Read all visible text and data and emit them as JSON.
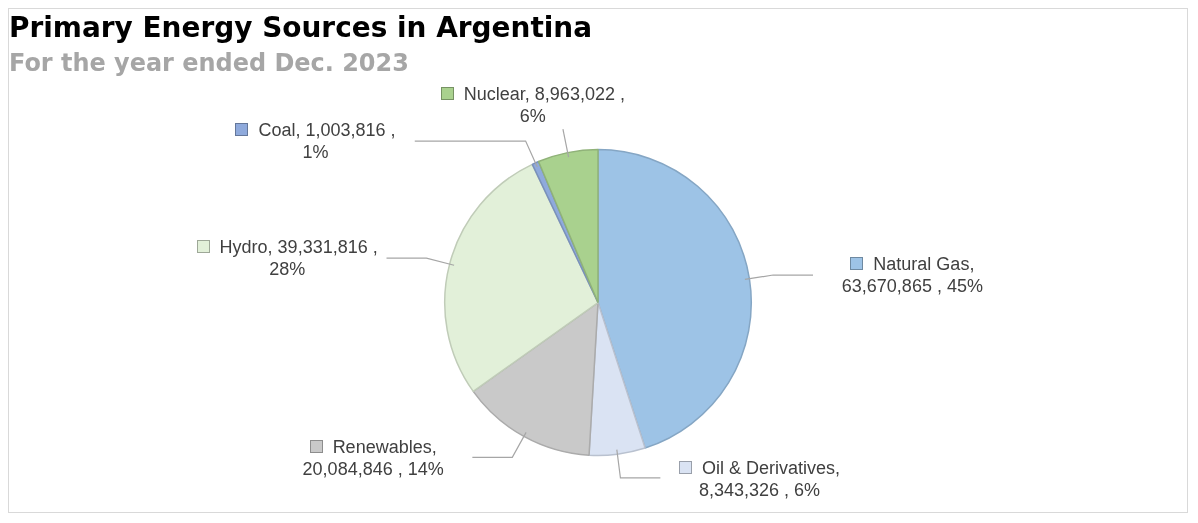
{
  "chart_data": {
    "type": "pie",
    "title": "Primary Energy Sources in Argentina",
    "subtitle": "For the year ended Dec. 2023",
    "categories": [
      "Natural Gas",
      "Oil & Derivatives",
      "Renewables",
      "Hydro",
      "Coal",
      "Nuclear"
    ],
    "values": [
      63670865,
      8343326,
      20084846,
      39331816,
      1003816,
      8963022
    ],
    "value_labels": [
      ", 63,670,865 , 45%",
      ", 8,343,326 , 6%",
      ", 20,084,846 , 14%",
      ", 39,331,816 , 28%",
      ", 1,003,816 , 1%",
      ", 8,963,022 , 6%"
    ],
    "colors": [
      "#9dc3e6",
      "#dae3f3",
      "#c9c9c9",
      "#e2f0d9",
      "#8faadc",
      "#a9d18e"
    ],
    "legend": true
  }
}
